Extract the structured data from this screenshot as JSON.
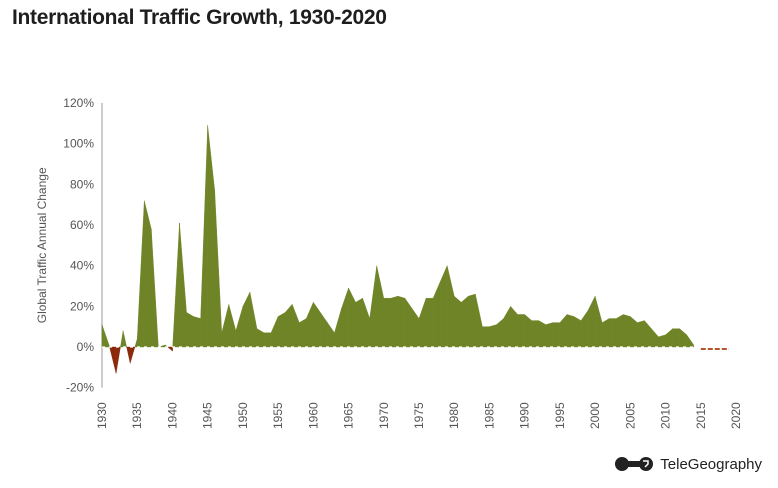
{
  "chart_data": {
    "type": "area",
    "title": "International Traffic Growth, 1930-2020",
    "ylabel": "Global Traffic Annual Change",
    "xlabel": "",
    "xlim": [
      1930,
      2020
    ],
    "ylim": [
      -20,
      120
    ],
    "yticks": [
      "-20%",
      "0%",
      "20%",
      "40%",
      "60%",
      "80%",
      "100%",
      "120%"
    ],
    "xticks": [
      "1930",
      "1935",
      "1940",
      "1945",
      "1950",
      "1955",
      "1960",
      "1965",
      "1970",
      "1975",
      "1980",
      "1985",
      "1990",
      "1995",
      "2000",
      "2005",
      "2010",
      "2015",
      "2020"
    ],
    "grid": false,
    "colors": {
      "positive": "#6f8427",
      "negative": "#8b2a0a",
      "forecast": "#b5532a"
    },
    "x_start": 1930,
    "values": [
      11,
      1,
      -13,
      8,
      -8,
      4,
      72,
      58,
      0,
      1,
      -2,
      61,
      17,
      15,
      14,
      109,
      77,
      7,
      21,
      8,
      20,
      27,
      9,
      7,
      7,
      15,
      17,
      21,
      12,
      14,
      22,
      17,
      12,
      7,
      19,
      29,
      22,
      24,
      14,
      40,
      24,
      24,
      25,
      24,
      19,
      14,
      24,
      24,
      32,
      40,
      25,
      22,
      25,
      26,
      10,
      10,
      11,
      14,
      20,
      16,
      16,
      13,
      13,
      11,
      12,
      12,
      16,
      15,
      13,
      18,
      25,
      12,
      14,
      14,
      16,
      15,
      12,
      13,
      9,
      5,
      6,
      9,
      9,
      6,
      1
    ],
    "forecast": {
      "x": [
        2015,
        2016,
        2017,
        2018,
        2019
      ],
      "values": [
        -1,
        -1,
        -1,
        -1,
        -1
      ]
    }
  },
  "logo": {
    "text": "TeleGeography"
  }
}
